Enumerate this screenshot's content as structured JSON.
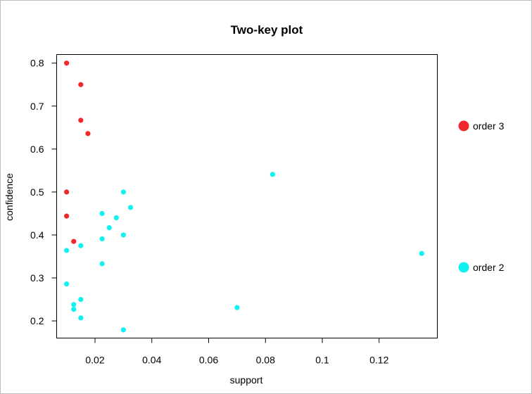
{
  "chart_data": {
    "type": "scatter",
    "title": "Two-key plot",
    "xlabel": "support",
    "ylabel": "confidence",
    "xlim": [
      0.0065,
      0.1405
    ],
    "ylim": [
      0.16,
      0.82
    ],
    "xticks": [
      0.02,
      0.04,
      0.06,
      0.08,
      0.1,
      0.12
    ],
    "xtick_labels": [
      "0.02",
      "0.04",
      "0.06",
      "0.08",
      "0.1",
      "0.12"
    ],
    "yticks": [
      0.2,
      0.3,
      0.4,
      0.5,
      0.6,
      0.7,
      0.8
    ],
    "ytick_labels": [
      "0.2",
      "0.3",
      "0.4",
      "0.5",
      "0.6",
      "0.7",
      "0.8"
    ],
    "legend_position": "right",
    "series": [
      {
        "name": "order 3",
        "color": "#f0282a",
        "points": [
          [
            0.01,
            0.8
          ],
          [
            0.015,
            0.75
          ],
          [
            0.015,
            0.667
          ],
          [
            0.0175,
            0.636
          ],
          [
            0.01,
            0.5
          ],
          [
            0.01,
            0.444
          ],
          [
            0.0125,
            0.385
          ]
        ]
      },
      {
        "name": "order 2",
        "color": "#12f0f0",
        "points": [
          [
            0.0825,
            0.541
          ],
          [
            0.03,
            0.5
          ],
          [
            0.0325,
            0.464
          ],
          [
            0.0225,
            0.45
          ],
          [
            0.0275,
            0.44
          ],
          [
            0.025,
            0.417
          ],
          [
            0.03,
            0.4
          ],
          [
            0.0225,
            0.391
          ],
          [
            0.015,
            0.375
          ],
          [
            0.01,
            0.364
          ],
          [
            0.135,
            0.357
          ],
          [
            0.0225,
            0.333
          ],
          [
            0.01,
            0.286
          ],
          [
            0.015,
            0.25
          ],
          [
            0.0125,
            0.238
          ],
          [
            0.0125,
            0.227
          ],
          [
            0.07,
            0.231
          ],
          [
            0.015,
            0.207
          ],
          [
            0.03,
            0.179
          ]
        ]
      }
    ]
  }
}
